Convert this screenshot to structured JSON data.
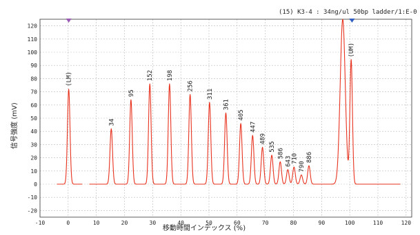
{
  "chart_data": {
    "type": "line",
    "title": "(15) K3-4 : 34ng/ul 50bp ladder/1:E-0",
    "xlabel": "移動時間インデックス (%)",
    "ylabel": "信号強度 (mV)",
    "xlim": [
      -10,
      122
    ],
    "ylim": [
      -25,
      125
    ],
    "xticks": [
      -10,
      0,
      10,
      20,
      30,
      40,
      50,
      60,
      70,
      80,
      90,
      100,
      110,
      120
    ],
    "yticks": [
      -20,
      -10,
      0,
      10,
      20,
      30,
      40,
      50,
      60,
      70,
      80,
      90,
      100,
      110,
      120
    ],
    "grid": true,
    "line_color": "#e8321e",
    "marker_color_lm": "#9b59b6",
    "marker_color_um": "#2f5fc4",
    "baseline": [
      [
        -4,
        0
      ],
      [
        5,
        0
      ],
      [
        7.5,
        0
      ],
      [
        118,
        0
      ]
    ],
    "peaks": [
      {
        "x": 0.2,
        "height": 72,
        "label": "(LM)"
      },
      {
        "x": 15.3,
        "height": 42,
        "label": "34"
      },
      {
        "x": 22.3,
        "height": 64,
        "label": "95"
      },
      {
        "x": 29.0,
        "height": 76,
        "label": "152"
      },
      {
        "x": 36.0,
        "height": 76,
        "label": "198"
      },
      {
        "x": 43.3,
        "height": 68,
        "label": "256"
      },
      {
        "x": 50.2,
        "height": 62,
        "label": "311"
      },
      {
        "x": 56.0,
        "height": 54,
        "label": "361"
      },
      {
        "x": 61.3,
        "height": 46,
        "label": "405"
      },
      {
        "x": 65.5,
        "height": 37,
        "label": "447"
      },
      {
        "x": 69.0,
        "height": 28,
        "label": "489"
      },
      {
        "x": 72.3,
        "height": 22,
        "label": "535"
      },
      {
        "x": 75.3,
        "height": 17,
        "label": "586"
      },
      {
        "x": 78.0,
        "height": 11,
        "label": "643"
      },
      {
        "x": 80.2,
        "height": 13,
        "label": "710"
      },
      {
        "x": 82.8,
        "height": 7,
        "label": "790"
      },
      {
        "x": 85.5,
        "height": 14,
        "label": "886"
      },
      {
        "x": 97.5,
        "height": 125,
        "label": ""
      },
      {
        "x": 100.5,
        "height": 94,
        "label": "(UM)"
      }
    ],
    "markers": [
      {
        "x": 0.2,
        "color": "lm"
      },
      {
        "x": 100.8,
        "color": "um"
      }
    ]
  }
}
